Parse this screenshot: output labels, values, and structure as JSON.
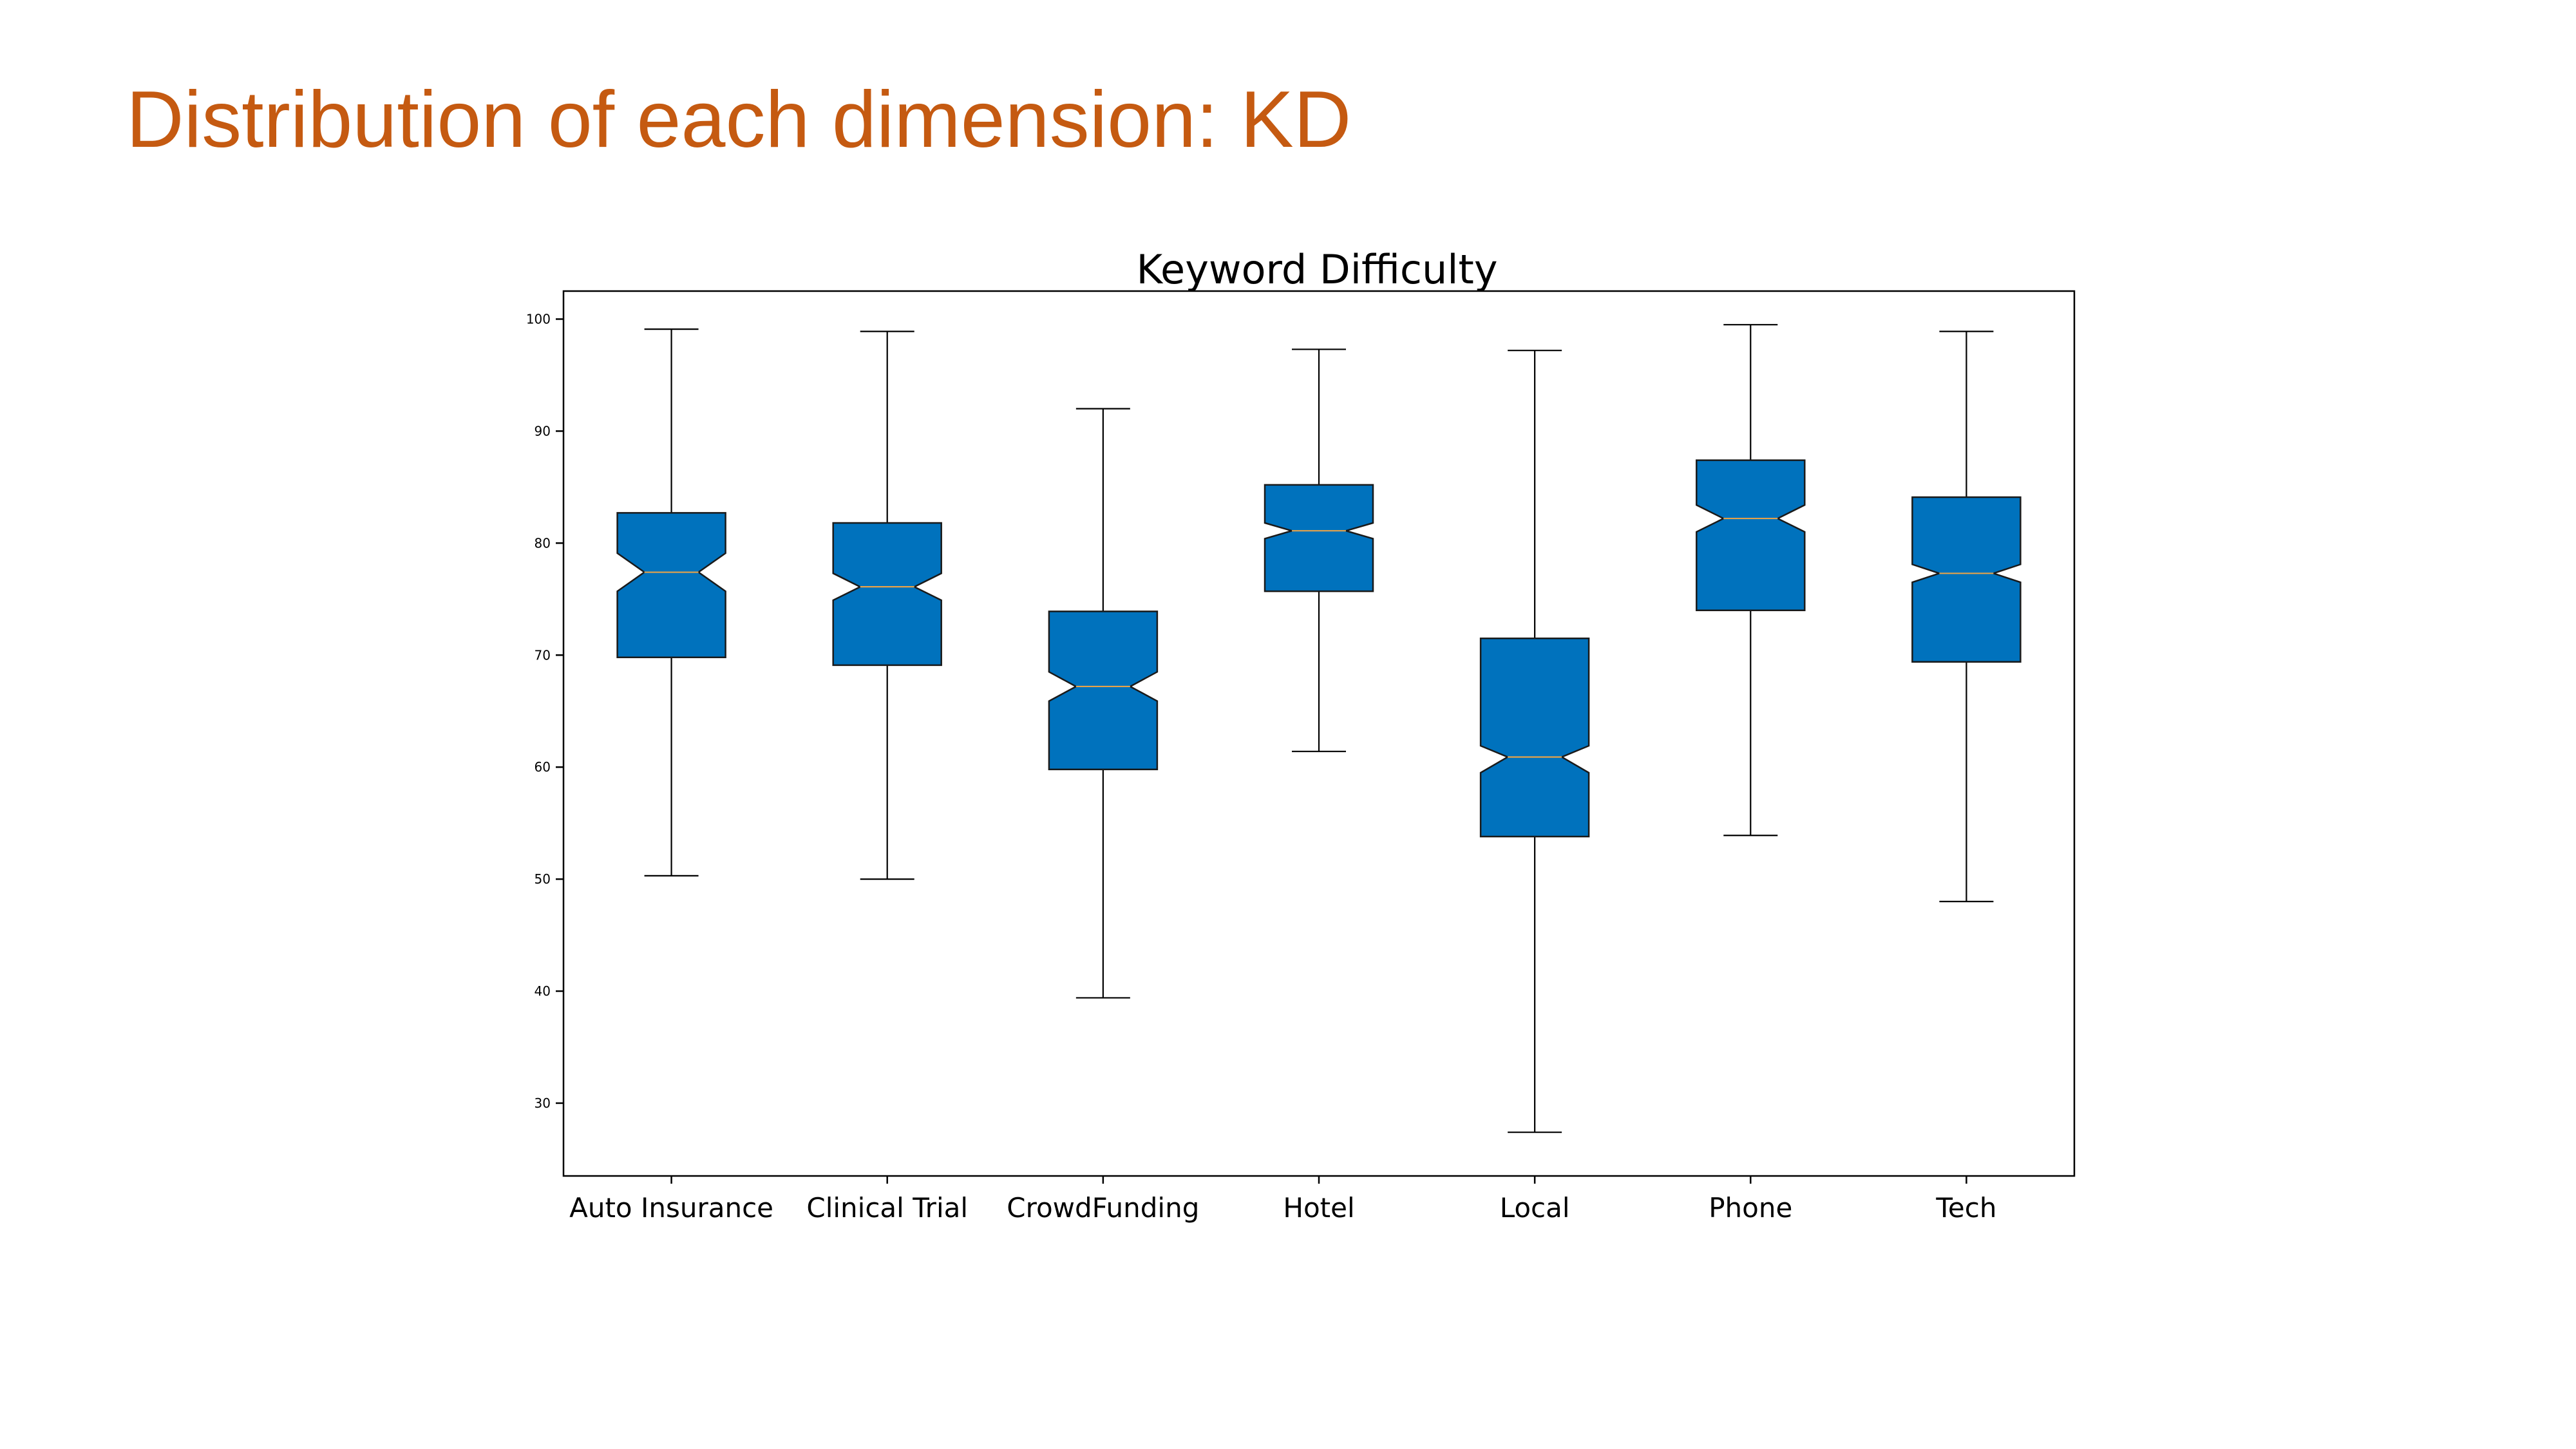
{
  "slide": {
    "title": "Distribution of each dimension: KD",
    "title_color": "#C55A11"
  },
  "chart_data": {
    "type": "boxplot",
    "title": "Keyword Difficulty",
    "xlabel": "",
    "ylabel": "",
    "ylim": [
      23.5,
      102.5
    ],
    "yticks": [
      30,
      40,
      50,
      60,
      70,
      80,
      90,
      100
    ],
    "notched": true,
    "grid": false,
    "legend": "none",
    "box_color": "#0072BD",
    "median_color": "#E6A24A",
    "categories": [
      "Auto Insurance",
      "Clinical Trial",
      "CrowdFunding",
      "Hotel",
      "Local",
      "Phone",
      "Tech"
    ],
    "series": [
      {
        "boxes": [
          {
            "whislo": 50.3,
            "q1": 69.8,
            "med": 77.4,
            "q3": 82.7,
            "whishi": 99.1,
            "cilo": 75.7,
            "cihi": 79.1
          },
          {
            "whislo": 50.0,
            "q1": 69.1,
            "med": 76.1,
            "q3": 81.8,
            "whishi": 98.9,
            "cilo": 74.9,
            "cihi": 77.3
          },
          {
            "whislo": 39.4,
            "q1": 59.8,
            "med": 67.2,
            "q3": 73.9,
            "whishi": 92.0,
            "cilo": 65.9,
            "cihi": 68.5
          },
          {
            "whislo": 61.4,
            "q1": 75.7,
            "med": 81.1,
            "q3": 85.2,
            "whishi": 97.3,
            "cilo": 80.4,
            "cihi": 81.8
          },
          {
            "whislo": 27.4,
            "q1": 53.8,
            "med": 60.9,
            "q3": 71.5,
            "whishi": 97.2,
            "cilo": 59.5,
            "cihi": 61.9
          },
          {
            "whislo": 53.9,
            "q1": 74.0,
            "med": 82.2,
            "q3": 87.4,
            "whishi": 99.5,
            "cilo": 81.0,
            "cihi": 83.4
          },
          {
            "whislo": 48.0,
            "q1": 69.4,
            "med": 77.3,
            "q3": 84.1,
            "whishi": 98.9,
            "cilo": 76.5,
            "cihi": 78.1
          }
        ]
      }
    ]
  }
}
